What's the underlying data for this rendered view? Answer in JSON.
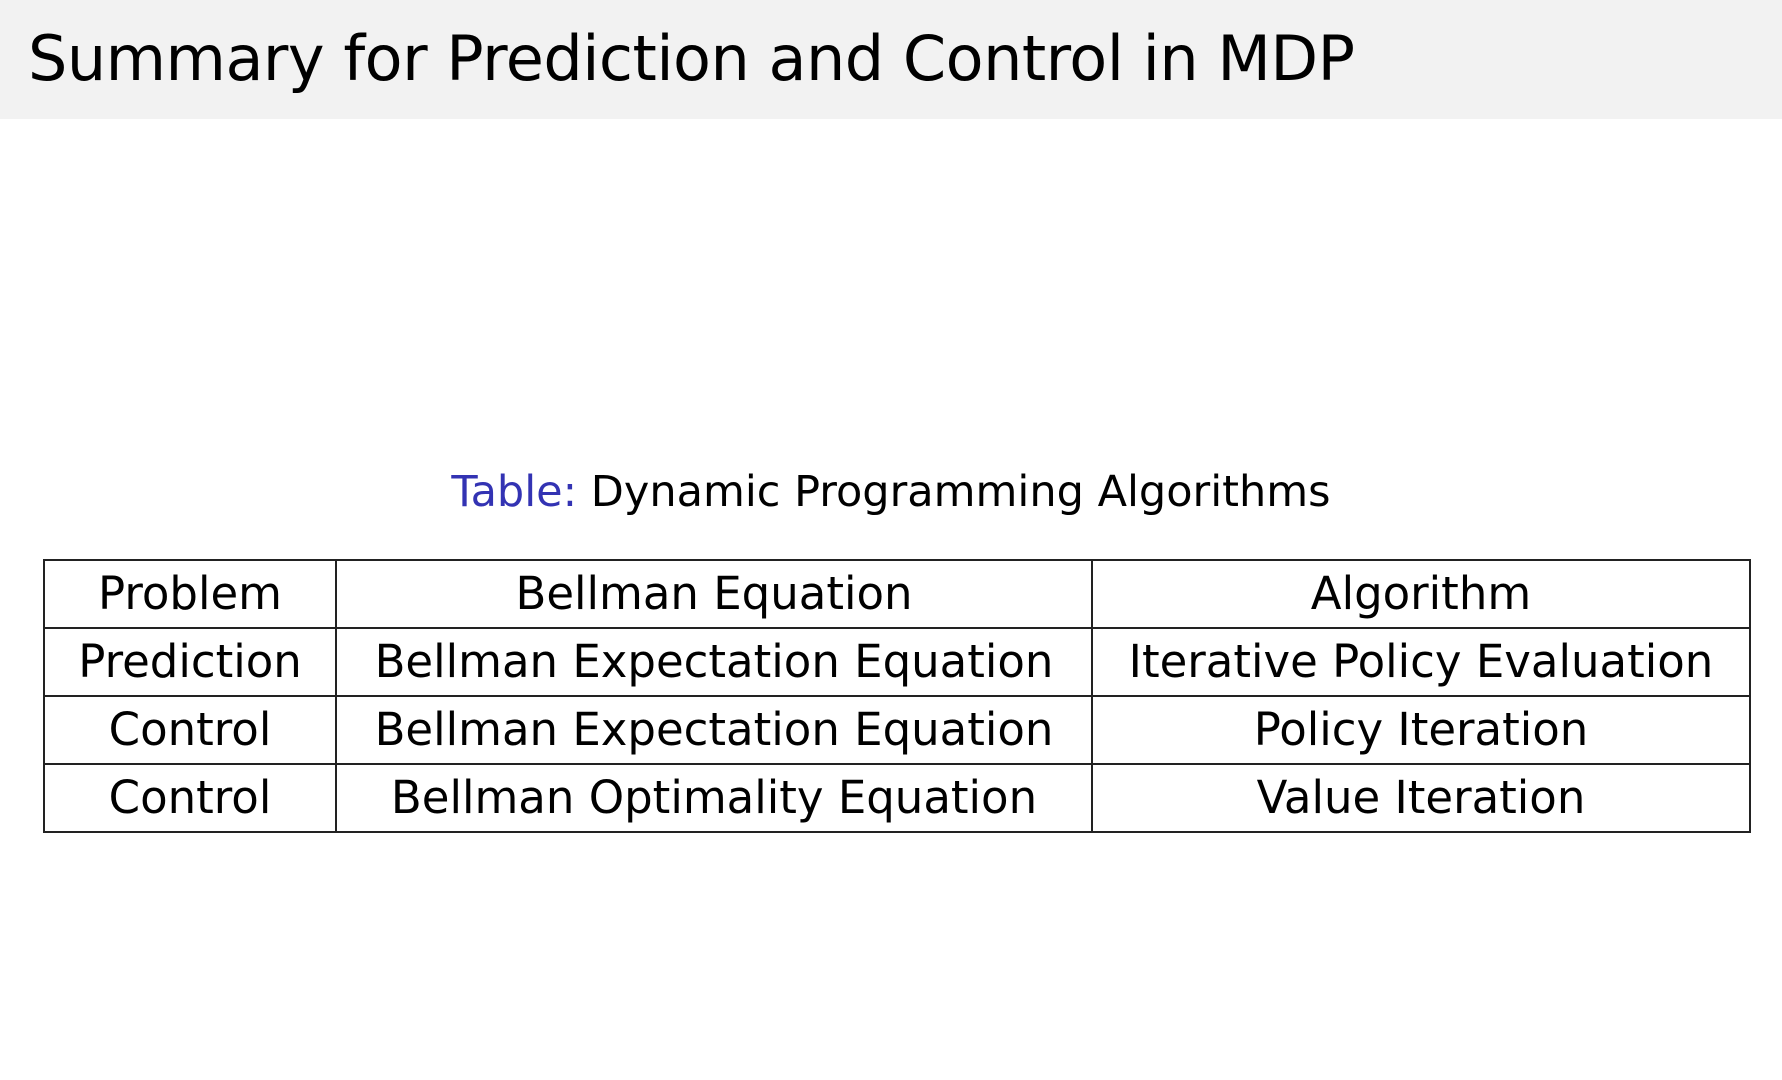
{
  "slide": {
    "title": "Summary for Prediction and Control in MDP",
    "caption_label": "Table:",
    "caption_text": "Dynamic Programming Algorithms",
    "accent_color": "#3333b3",
    "table": {
      "headers": [
        "Problem",
        "Bellman Equation",
        "Algorithm"
      ],
      "rows": [
        [
          "Prediction",
          "Bellman Expectation Equation",
          "Iterative Policy Evaluation"
        ],
        [
          "Control",
          "Bellman Expectation Equation",
          "Policy Iteration"
        ],
        [
          "Control",
          "Bellman Optimality Equation",
          "Value Iteration"
        ]
      ]
    }
  }
}
